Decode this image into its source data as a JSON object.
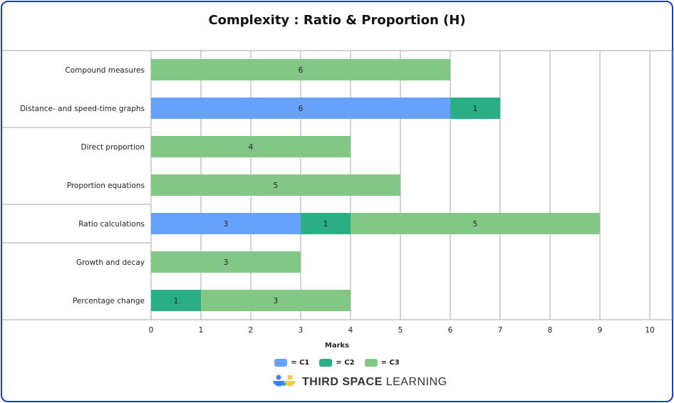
{
  "chart_data": {
    "type": "bar",
    "orientation": "horizontal",
    "stacked": true,
    "title": "Complexity : Ratio & Proportion (H)",
    "xlabel": "Marks",
    "ylabel": "",
    "xlim": [
      0,
      10
    ],
    "xticks": [
      "0",
      "1",
      "2",
      "3",
      "4",
      "5",
      "6",
      "7",
      "8",
      "9",
      "10"
    ],
    "grid": true,
    "legend_position": "bottom",
    "categories": [
      "Compound measures",
      "Distance- and speed-time graphs",
      "Direct proportion",
      "Proportion equations",
      "Ratio calculations",
      "Growth and decay",
      "Percentage change"
    ],
    "series": [
      {
        "name": "= C1",
        "color": "#66a1fb",
        "values": [
          0,
          6,
          0,
          0,
          3,
          0,
          0
        ]
      },
      {
        "name": "= C2",
        "color": "#2aae85",
        "values": [
          0,
          1,
          0,
          0,
          1,
          0,
          1
        ]
      },
      {
        "name": "= C3",
        "color": "#82c785",
        "values": [
          6,
          0,
          4,
          5,
          5,
          3,
          3
        ]
      }
    ]
  },
  "brand": {
    "logo_bold": "THIRD SPACE",
    "logo_light": "LEARNING",
    "border_color": "#1a3be0"
  }
}
